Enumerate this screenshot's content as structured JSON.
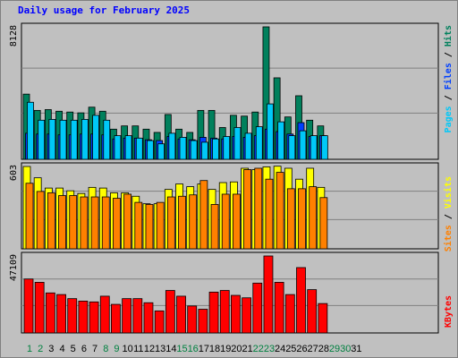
{
  "title": "Daily usage for February 2025",
  "colors": {
    "background": "#c0c0c0",
    "title": "#0000ff",
    "hits": "#00805c",
    "files": "#0040ff",
    "pages": "#00c8f8",
    "visits": "#ffff00",
    "sites": "#ff8000",
    "kbytes": "#ff0000",
    "weekend_label": "#008040",
    "weekday_label": "#000000"
  },
  "chart_data": [
    {
      "type": "bar",
      "panel": "hits-files-pages",
      "categories": [
        "1",
        "2",
        "3",
        "4",
        "5",
        "6",
        "7",
        "8",
        "9",
        "10",
        "11",
        "12",
        "13",
        "14",
        "15",
        "16",
        "17",
        "18",
        "19",
        "20",
        "21",
        "22",
        "23",
        "24",
        "25",
        "26",
        "27",
        "28",
        "29",
        "30",
        "31"
      ],
      "weekend_days": [
        "1",
        "2",
        "8",
        "9",
        "15",
        "16",
        "22",
        "23",
        "29",
        "30"
      ],
      "y_max_label": "8128",
      "ylim": [
        0,
        8128
      ],
      "series_labels": [
        "Pages",
        "Files",
        "Hits"
      ],
      "series": [
        {
          "name": "Hits",
          "values": [
            4000,
            3000,
            3050,
            2950,
            2900,
            2850,
            3200,
            2950,
            1850,
            2050,
            2050,
            1850,
            1650,
            2750,
            1850,
            1650,
            3000,
            3000,
            1950,
            2700,
            2650,
            2900,
            8128,
            5000,
            2600,
            3900,
            2400,
            2050,
            null,
            null,
            null
          ]
        },
        {
          "name": "Files",
          "values": [
            1600,
            1550,
            1550,
            1500,
            1500,
            1550,
            1550,
            1500,
            1250,
            1300,
            1300,
            1200,
            1150,
            1400,
            1250,
            1200,
            1350,
            1300,
            1250,
            1400,
            1350,
            1450,
            1850,
            1700,
            1550,
            2250,
            1400,
            1450,
            null,
            null,
            null
          ]
        },
        {
          "name": "Pages",
          "values": [
            3500,
            2400,
            2450,
            2400,
            2400,
            2450,
            2700,
            2400,
            1450,
            1450,
            1300,
            1150,
            950,
            1600,
            1350,
            1150,
            1050,
            1250,
            1400,
            1950,
            1600,
            2000,
            3400,
            2300,
            1450,
            1750,
            1450,
            1450,
            null,
            null,
            null
          ]
        }
      ]
    },
    {
      "type": "bar",
      "panel": "visits-sites",
      "categories": [
        "1",
        "2",
        "3",
        "4",
        "5",
        "6",
        "7",
        "8",
        "9",
        "10",
        "11",
        "12",
        "13",
        "14",
        "15",
        "16",
        "17",
        "18",
        "19",
        "20",
        "21",
        "22",
        "23",
        "24",
        "25",
        "26",
        "27",
        "28",
        "29",
        "30",
        "31"
      ],
      "y_max_label": "603",
      "ylim": [
        0,
        603
      ],
      "series_labels": [
        "Sites",
        "Visits"
      ],
      "series": [
        {
          "name": "Visits",
          "values": [
            603,
            520,
            445,
            445,
            425,
            405,
            450,
            445,
            410,
            410,
            385,
            330,
            330,
            435,
            475,
            455,
            475,
            435,
            485,
            490,
            590,
            580,
            600,
            605,
            590,
            510,
            590,
            450,
            null,
            null,
            null
          ]
        },
        {
          "name": "Sites",
          "values": [
            480,
            420,
            410,
            390,
            390,
            380,
            380,
            380,
            370,
            400,
            340,
            325,
            340,
            380,
            385,
            395,
            500,
            325,
            400,
            400,
            580,
            590,
            510,
            560,
            440,
            440,
            455,
            375,
            null,
            null,
            null
          ]
        }
      ]
    },
    {
      "type": "bar",
      "panel": "kbytes",
      "categories": [
        "1",
        "2",
        "3",
        "4",
        "5",
        "6",
        "7",
        "8",
        "9",
        "10",
        "11",
        "12",
        "13",
        "14",
        "15",
        "16",
        "17",
        "18",
        "19",
        "20",
        "21",
        "22",
        "23",
        "24",
        "25",
        "26",
        "27",
        "28",
        "29",
        "30",
        "31"
      ],
      "y_max_label": "47109",
      "ylim": [
        0,
        47109
      ],
      "series_labels": [
        "KBytes"
      ],
      "series": [
        {
          "name": "KBytes",
          "values": [
            33000,
            31000,
            24500,
            23500,
            21000,
            19500,
            19000,
            22500,
            17500,
            21000,
            21000,
            18500,
            13500,
            26000,
            22500,
            16500,
            14500,
            25000,
            26000,
            23000,
            21500,
            30500,
            47109,
            31000,
            23500,
            40000,
            26500,
            18000,
            null,
            null,
            null
          ]
        }
      ]
    }
  ]
}
